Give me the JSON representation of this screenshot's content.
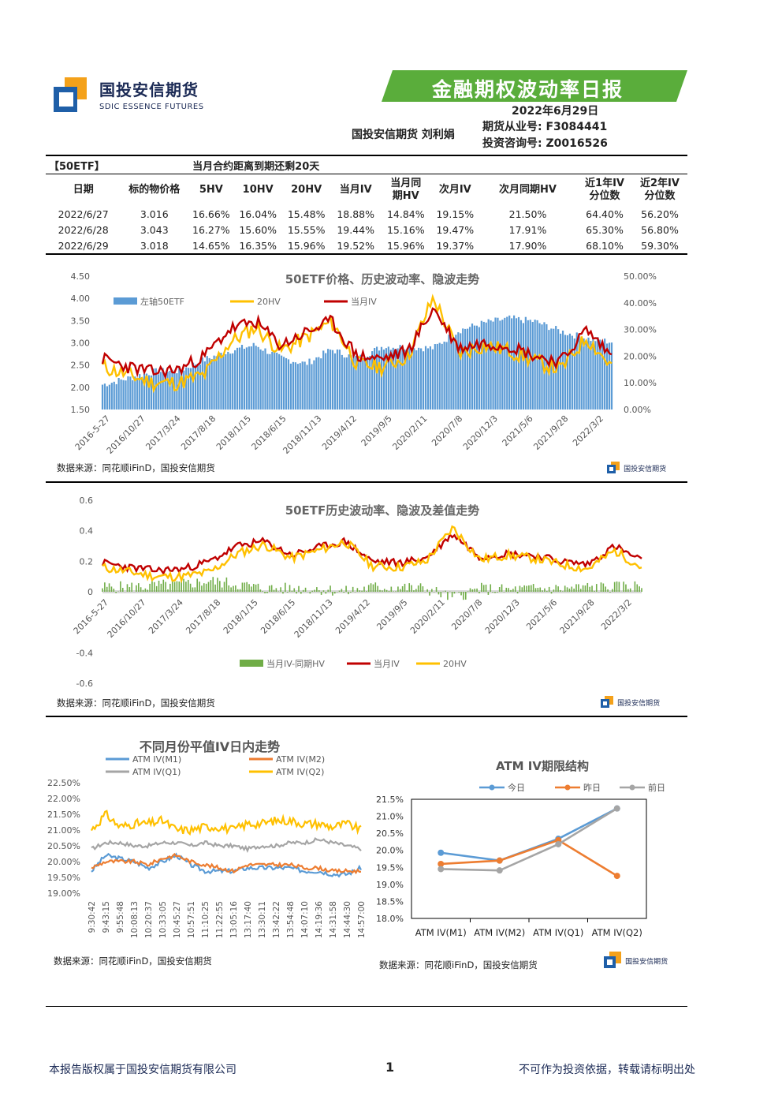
{
  "header": {
    "company_cn": "国投安信期货",
    "company_en": "SDIC ESSENCE FUTURES",
    "report_title": "金融期权波动率日报",
    "date": "2022年6月29日",
    "author": "国投安信期货 刘利娟",
    "license_futures": "期货从业号: F3084441",
    "license_invest": "投资咨询号: Z0016526",
    "brand_color": "#5aad3b",
    "logo_blue": "#1f5fa8",
    "logo_orange": "#f4a11a"
  },
  "table": {
    "tag": "【50ETF】",
    "caption": "当月合约距离到期还剩20天",
    "columns": [
      [
        "日期"
      ],
      [
        "标的物价格"
      ],
      [
        "5HV"
      ],
      [
        "10HV"
      ],
      [
        "20HV"
      ],
      [
        "当月IV"
      ],
      [
        "当月同",
        "期HV"
      ],
      [
        "次月IV"
      ],
      [
        "次月同期HV"
      ],
      [
        "近1年IV",
        "分位数"
      ],
      [
        "近2年IV",
        "分位数"
      ]
    ],
    "rows": [
      [
        "2022/6/27",
        "3.016",
        "16.66%",
        "16.04%",
        "15.48%",
        "18.88%",
        "14.84%",
        "19.15%",
        "21.50%",
        "64.40%",
        "56.20%"
      ],
      [
        "2022/6/28",
        "3.043",
        "16.27%",
        "15.60%",
        "15.55%",
        "19.44%",
        "15.16%",
        "19.47%",
        "17.91%",
        "65.30%",
        "56.80%"
      ],
      [
        "2022/6/29",
        "3.018",
        "14.65%",
        "16.35%",
        "15.96%",
        "19.52%",
        "15.96%",
        "19.37%",
        "17.90%",
        "68.10%",
        "59.30%"
      ]
    ]
  },
  "source_text": "数据来源：同花顺iFinD，国投安信期货",
  "watermark_text": "国投安信期货",
  "chart_data": [
    {
      "type": "area",
      "title": "50ETF价格、历史波动率、隐波走势",
      "x_ticks": [
        "2016-5-27",
        "2016/10/27",
        "2017/3/24",
        "2017/8/18",
        "2018/1/15",
        "2018/6/15",
        "2018/11/13",
        "2019/4/12",
        "2019/9/5",
        "2020/2/11",
        "2020/7/8",
        "2020/12/3",
        "2021/5/6",
        "2021/9/28",
        "2022/3/2"
      ],
      "y_left_ticks": [
        "1.50",
        "2.00",
        "2.50",
        "3.00",
        "3.50",
        "4.00",
        "4.50"
      ],
      "y_right_ticks": [
        "0.00%",
        "10.00%",
        "20.00%",
        "30.00%",
        "40.00%",
        "50.00%"
      ],
      "ylim_left": [
        1.5,
        4.5
      ],
      "ylim_right": [
        0,
        0.5
      ],
      "legend": [
        "左轴50ETF",
        "20HV",
        "当月IV"
      ],
      "colors": {
        "price": "#5b9bd5",
        "hv20": "#ffc000",
        "iv": "#c00000"
      },
      "series": [
        {
          "name": "左轴50ETF",
          "axis": "left",
          "values": [
            2.06,
            2.2,
            2.35,
            2.37,
            2.62,
            2.82,
            2.95,
            2.66,
            2.53,
            2.85,
            2.64,
            2.92,
            2.9,
            2.88,
            3.28,
            3.45,
            3.55,
            3.48,
            3.26,
            3.1,
            3.02
          ]
        },
        {
          "name": "20HV",
          "axis": "right",
          "values": [
            0.16,
            0.13,
            0.1,
            0.1,
            0.13,
            0.25,
            0.31,
            0.22,
            0.27,
            0.33,
            0.17,
            0.16,
            0.2,
            0.42,
            0.21,
            0.24,
            0.22,
            0.18,
            0.15,
            0.27,
            0.16
          ]
        },
        {
          "name": "当月IV",
          "axis": "right",
          "values": [
            0.19,
            0.16,
            0.14,
            0.15,
            0.2,
            0.3,
            0.33,
            0.24,
            0.29,
            0.33,
            0.2,
            0.19,
            0.22,
            0.38,
            0.23,
            0.25,
            0.24,
            0.2,
            0.18,
            0.3,
            0.2
          ]
        }
      ]
    },
    {
      "type": "line",
      "title": "50ETF历史波动率、隐波及差值走势",
      "x_ticks": [
        "2016-5-27",
        "2016/10/27",
        "2017/3/24",
        "2017/8/18",
        "2018/1/15",
        "2018/6/15",
        "2018/11/13",
        "2019/4/12",
        "2019/9/5",
        "2020/2/11",
        "2020/7/8",
        "2020/12/3",
        "2021/5/6",
        "2021/9/28",
        "2022/3/2"
      ],
      "y_ticks": [
        "-0.6",
        "-0.4",
        "0",
        "0.2",
        "0.4",
        "0.6"
      ],
      "ylim": [
        -0.6,
        0.6
      ],
      "legend": [
        "当月IV-同期HV",
        "当月IV",
        "20HV"
      ],
      "colors": {
        "diff": "#70ad47",
        "iv": "#c00000",
        "hv20": "#ffc000"
      },
      "series": [
        {
          "name": "当月IV-同期HV",
          "values": [
            0.03,
            0.03,
            0.04,
            0.05,
            0.07,
            0.05,
            0.02,
            0.02,
            0.02,
            0.0,
            0.03,
            0.03,
            0.02,
            -0.04,
            0.02,
            0.01,
            0.02,
            0.02,
            0.03,
            0.03,
            0.04
          ]
        },
        {
          "name": "当月IV",
          "values": [
            0.19,
            0.16,
            0.14,
            0.15,
            0.2,
            0.3,
            0.33,
            0.24,
            0.29,
            0.33,
            0.2,
            0.19,
            0.22,
            0.38,
            0.23,
            0.25,
            0.24,
            0.2,
            0.18,
            0.3,
            0.2
          ]
        },
        {
          "name": "20HV",
          "values": [
            0.16,
            0.13,
            0.1,
            0.1,
            0.13,
            0.25,
            0.31,
            0.22,
            0.27,
            0.33,
            0.17,
            0.16,
            0.2,
            0.42,
            0.21,
            0.24,
            0.22,
            0.18,
            0.15,
            0.27,
            0.16
          ]
        }
      ]
    },
    {
      "type": "line",
      "title": "不同月份平值IV日内走势",
      "x_ticks": [
        "9:30:42",
        "9:43:15",
        "9:55:48",
        "10:08:13",
        "10:20:37",
        "10:33:05",
        "10:45:27",
        "10:57:51",
        "11:10:25",
        "11:22:55",
        "13:05:16",
        "13:17:40",
        "13:30:11",
        "13:42:22",
        "13:54:48",
        "14:07:10",
        "14:19:36",
        "14:31:58",
        "14:44:30",
        "14:57:00"
      ],
      "y_ticks": [
        "19.00%",
        "19.50%",
        "20.00%",
        "20.50%",
        "21.00%",
        "21.50%",
        "22.00%",
        "22.50%"
      ],
      "ylim": [
        0.19,
        0.225
      ],
      "legend": [
        "ATM IV(M1)",
        "ATM IV(M2)",
        "ATM IV(Q1)",
        "ATM IV(Q2)"
      ],
      "colors": {
        "M1": "#5b9bd5",
        "M2": "#ed7d31",
        "Q1": "#a5a5a5",
        "Q2": "#ffc000"
      },
      "series": [
        {
          "name": "ATM IV(M1)",
          "values": [
            0.197,
            0.202,
            0.201,
            0.2,
            0.198,
            0.2,
            0.202,
            0.199,
            0.197,
            0.197,
            0.197,
            0.198,
            0.198,
            0.198,
            0.198,
            0.197,
            0.197,
            0.196,
            0.196,
            0.198
          ]
        },
        {
          "name": "ATM IV(M2)",
          "values": [
            0.198,
            0.2,
            0.2,
            0.2,
            0.199,
            0.201,
            0.202,
            0.2,
            0.199,
            0.198,
            0.197,
            0.199,
            0.199,
            0.199,
            0.199,
            0.198,
            0.198,
            0.197,
            0.197,
            0.197
          ]
        },
        {
          "name": "ATM IV(Q1)",
          "values": [
            0.204,
            0.206,
            0.206,
            0.205,
            0.205,
            0.206,
            0.206,
            0.205,
            0.206,
            0.205,
            0.205,
            0.204,
            0.205,
            0.205,
            0.206,
            0.206,
            0.207,
            0.206,
            0.205,
            0.204
          ]
        },
        {
          "name": "ATM IV(Q2)",
          "values": [
            0.21,
            0.215,
            0.211,
            0.212,
            0.212,
            0.213,
            0.21,
            0.21,
            0.211,
            0.211,
            0.21,
            0.212,
            0.212,
            0.213,
            0.213,
            0.212,
            0.212,
            0.211,
            0.212,
            0.21
          ]
        }
      ]
    },
    {
      "type": "line",
      "title": "ATM IV期限结构",
      "categories": [
        "ATM IV(M1)",
        "ATM IV(M2)",
        "ATM IV(Q1)",
        "ATM IV(Q2)"
      ],
      "y_ticks": [
        "18.0%",
        "18.5%",
        "19.0%",
        "19.5%",
        "20.0%",
        "20.5%",
        "21.0%",
        "21.5%"
      ],
      "ylim": [
        0.18,
        0.215
      ],
      "legend": [
        "今日",
        "昨日",
        "前日"
      ],
      "colors": {
        "today": "#5b9bd5",
        "yesterday": "#ed7d31",
        "before": "#a5a5a5"
      },
      "series": [
        {
          "name": "今日",
          "values": [
            0.1993,
            0.197,
            0.2034,
            0.2123
          ]
        },
        {
          "name": "昨日",
          "values": [
            0.196,
            0.197,
            0.203,
            0.1925
          ]
        },
        {
          "name": "前日",
          "values": [
            0.1945,
            0.1941,
            0.2018,
            0.2123
          ]
        }
      ]
    }
  ],
  "footer": {
    "left": "本报告版权属于国投安信期货有限公司",
    "page": "1",
    "right": "不可作为投资依据，转载请标明出处"
  }
}
